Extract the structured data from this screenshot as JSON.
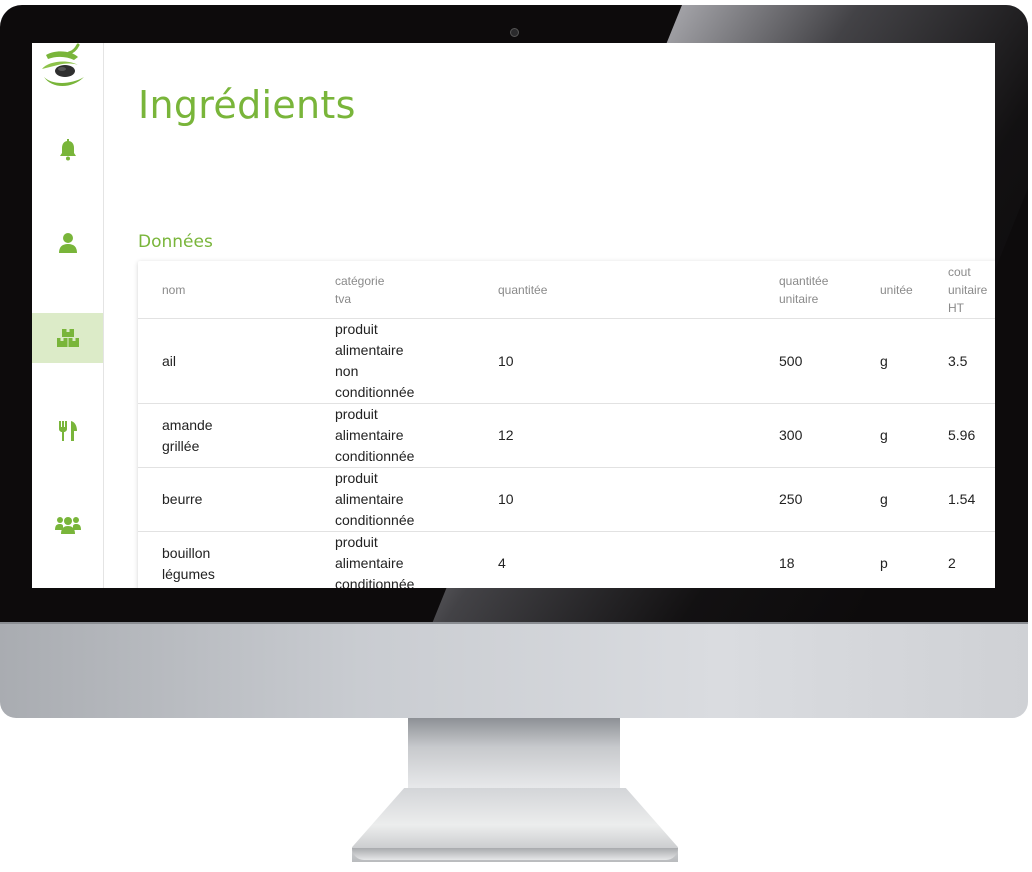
{
  "page": {
    "title": "Ingrédients",
    "section_title": "Données"
  },
  "colors": {
    "accent": "#79b53a",
    "active_nav_bg": "#dcebc8"
  },
  "sidebar": {
    "items": [
      {
        "icon": "bell-icon",
        "active": false
      },
      {
        "icon": "user-icon",
        "active": false
      },
      {
        "icon": "boxes-icon",
        "active": true
      },
      {
        "icon": "fork-knife-icon",
        "active": false
      },
      {
        "icon": "users-group-icon",
        "active": false
      }
    ]
  },
  "table": {
    "headers": {
      "nom": "nom",
      "categorie_tva": [
        "catégorie",
        "tva"
      ],
      "quantite": "quantitée",
      "quantite_unitaire": [
        "quantitée",
        "unitaire"
      ],
      "unite": "unitée",
      "cout_unitaire_ht": [
        "cout",
        "unitaire",
        "HT"
      ]
    },
    "rows": [
      {
        "nom": [
          "ail"
        ],
        "categorie_tva": [
          "produit",
          "alimentaire",
          "non",
          "conditionnée"
        ],
        "quantite": "10",
        "quantite_unitaire": "500",
        "unite": "g",
        "cout_unitaire_ht": "3.5"
      },
      {
        "nom": [
          "amande",
          "grillée"
        ],
        "categorie_tva": [
          "produit",
          "alimentaire",
          "conditionnée"
        ],
        "quantite": "12",
        "quantite_unitaire": "300",
        "unite": "g",
        "cout_unitaire_ht": "5.96"
      },
      {
        "nom": [
          "beurre"
        ],
        "categorie_tva": [
          "produit",
          "alimentaire",
          "conditionnée"
        ],
        "quantite": "10",
        "quantite_unitaire": "250",
        "unite": "g",
        "cout_unitaire_ht": "1.54"
      },
      {
        "nom": [
          "bouillon",
          "légumes"
        ],
        "categorie_tva": [
          "produit",
          "alimentaire",
          "conditionnée"
        ],
        "quantite": "4",
        "quantite_unitaire": "18",
        "unite": "p",
        "cout_unitaire_ht": "2"
      }
    ]
  }
}
